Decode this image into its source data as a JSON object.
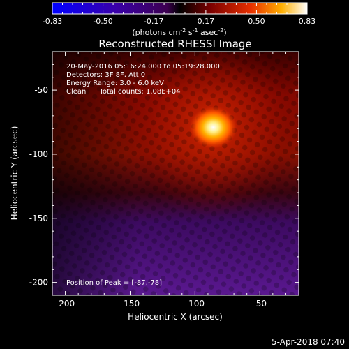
{
  "chart_data": {
    "type": "heatmap",
    "title": "Reconstructed RHESSI Image",
    "xlabel": "Heliocentric X (arcsec)",
    "ylabel": "Heliocentric Y (arcsec)",
    "xlim": [
      -210,
      -20
    ],
    "ylim": [
      -210,
      -20
    ],
    "x_ticks": [
      -200,
      -150,
      -100,
      -50
    ],
    "y_ticks": [
      -200,
      -150,
      -100,
      -50
    ],
    "annotations": [
      "20-May-2016 05:16:24.000 to 05:19:28.000",
      "Detectors: 3F 8F, Att 0",
      "Energy Range: 3.0 - 6.0 keV",
      "Clean      Total counts: 1.08E+04"
    ],
    "peak_label": "Position of Peak = [-87,-78]",
    "peak": {
      "x": -87,
      "y": -78,
      "value": 0.83
    },
    "source_sigma_arcsec": 9,
    "colorbar": {
      "ticks": [
        -0.83,
        -0.5,
        -0.17,
        0.17,
        0.5,
        0.83
      ],
      "tick_labels": [
        "-0.83",
        "-0.50",
        "-0.17",
        "0.17",
        "0.50",
        "0.83"
      ],
      "unit_parts": [
        "(photons cm",
        "-2",
        " s",
        "-1",
        " asec",
        "-2",
        ")"
      ],
      "range": [
        -0.83,
        0.83
      ]
    },
    "footer": "5-Apr-2018 07:40"
  }
}
